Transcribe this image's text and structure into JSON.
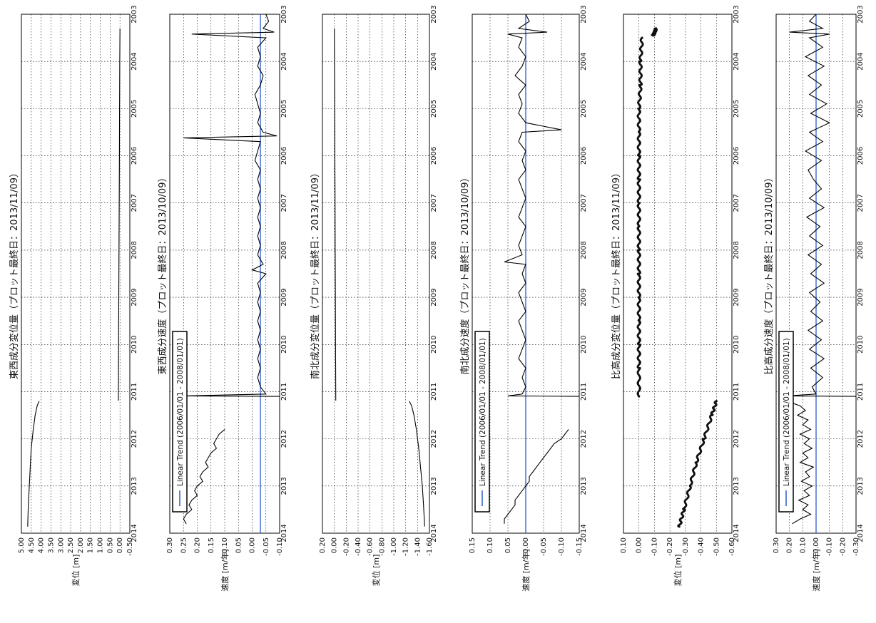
{
  "chart_data": [
    {
      "type": "line",
      "title": "東西成分変位量（プロット最終日：2013/11/09）",
      "ylabel": "変位 [m]",
      "ylim": [
        -0.5,
        5.0
      ],
      "yticks": [
        "5.00",
        "4.50",
        "4.00",
        "3.50",
        "3.00",
        "2.50",
        "2.00",
        "1.50",
        "1.00",
        "0.50",
        "0.00",
        "-0.50"
      ],
      "xticks": [
        "2003",
        "2004",
        "2005",
        "2006",
        "2007",
        "2008",
        "2009",
        "2010",
        "2011",
        "2012",
        "2013",
        "2014"
      ],
      "xlim": [
        2003,
        2014
      ],
      "series": [
        {
          "x": [
            2003.3,
            2004,
            2005,
            2006,
            2007,
            2008,
            2009,
            2010,
            2011.19
          ],
          "values": [
            0,
            0.01,
            0.02,
            0.03,
            0.04,
            0.05,
            0.06,
            0.07,
            0.08
          ],
          "style": "line"
        },
        {
          "x": [
            2011.2,
            2011.3,
            2011.5,
            2011.8,
            2012.2,
            2012.6,
            2013,
            2013.4,
            2013.86
          ],
          "values": [
            4.1,
            4.2,
            4.3,
            4.4,
            4.5,
            4.55,
            4.6,
            4.65,
            4.68
          ],
          "style": "line"
        }
      ]
    },
    {
      "type": "line",
      "title": "東西成分速度（プロット最終日：2013/10/09）",
      "ylabel": "速度 [m/年]",
      "ylim": [
        -0.1,
        0.3
      ],
      "yticks": [
        "0.30",
        "0.25",
        "0.20",
        "0.15",
        "0.10",
        "0.05",
        "0.00",
        "-0.05",
        "-0.10"
      ],
      "xticks": [
        "2003",
        "2004",
        "2005",
        "2006",
        "2007",
        "2008",
        "2009",
        "2010",
        "2011",
        "2012",
        "2013",
        "2014"
      ],
      "xlim": [
        2003,
        2014
      ],
      "legend": [
        "Linear Trend (2006/01/01 - 2008/01/01)"
      ],
      "trend": -0.03,
      "series": [
        {
          "x": [
            2003.0,
            2003.15,
            2003.3,
            2003.38,
            2003.42,
            2003.5,
            2003.7,
            2003.9,
            2004.1,
            2004.3,
            2004.5,
            2004.7,
            2004.9,
            2005.1,
            2005.3,
            2005.5,
            2005.58,
            2005.62,
            2005.7,
            2005.9,
            2006.1,
            2006.3,
            2006.5,
            2006.7,
            2006.9,
            2007.1,
            2007.3,
            2007.5,
            2007.7,
            2007.9,
            2008.1,
            2008.3,
            2008.42,
            2008.5,
            2008.7,
            2008.9,
            2009.1,
            2009.3,
            2009.5,
            2009.7,
            2009.9,
            2010.1,
            2010.3,
            2010.5,
            2010.7,
            2010.9,
            2011.05,
            2011.09,
            2011.1
          ],
          "values": [
            -0.05,
            -0.06,
            -0.04,
            -0.08,
            0.22,
            -0.05,
            -0.02,
            -0.03,
            -0.02,
            -0.04,
            -0.03,
            -0.01,
            -0.02,
            -0.03,
            -0.02,
            -0.04,
            -0.09,
            0.25,
            -0.03,
            -0.02,
            -0.01,
            -0.03,
            -0.02,
            -0.03,
            -0.02,
            -0.03,
            -0.02,
            -0.03,
            -0.02,
            -0.03,
            -0.02,
            -0.04,
            0.0,
            -0.05,
            -0.02,
            -0.03,
            -0.02,
            -0.03,
            -0.02,
            -0.03,
            -0.02,
            -0.03,
            -0.02,
            -0.03,
            -0.02,
            -0.03,
            -0.05,
            0.25,
            -0.1
          ],
          "style": "line"
        },
        {
          "x": [
            2011.8,
            2011.9,
            2012.0,
            2012.1,
            2012.2,
            2012.3,
            2012.4,
            2012.5,
            2012.6,
            2012.7,
            2012.8,
            2012.9,
            2013.0,
            2013.1,
            2013.2,
            2013.3,
            2013.4,
            2013.5,
            2013.6,
            2013.7,
            2013.8
          ],
          "values": [
            0.1,
            0.12,
            0.13,
            0.14,
            0.13,
            0.15,
            0.16,
            0.17,
            0.16,
            0.18,
            0.19,
            0.18,
            0.2,
            0.21,
            0.2,
            0.22,
            0.23,
            0.22,
            0.24,
            0.25,
            0.24
          ],
          "style": "line"
        }
      ]
    },
    {
      "type": "line",
      "title": "南北成分変位量（プロット最終日：2013/11/09）",
      "ylabel": "変位 [m]",
      "ylim": [
        -1.6,
        0.2
      ],
      "yticks": [
        "0.20",
        "0.00",
        "-0.20",
        "-0.40",
        "-0.60",
        "-0.80",
        "-1.00",
        "-1.20",
        "-1.40",
        "-1.60"
      ],
      "xticks": [
        "2003",
        "2004",
        "2005",
        "2006",
        "2007",
        "2008",
        "2009",
        "2010",
        "2011",
        "2012",
        "2013",
        "2014"
      ],
      "xlim": [
        2003,
        2014
      ],
      "series": [
        {
          "x": [
            2003.3,
            2004,
            2005,
            2006,
            2007,
            2008,
            2009,
            2010,
            2011.19
          ],
          "values": [
            0,
            -0.003,
            -0.006,
            -0.009,
            -0.012,
            -0.015,
            -0.018,
            -0.021,
            -0.024
          ],
          "style": "line"
        },
        {
          "x": [
            2011.2,
            2011.3,
            2011.5,
            2011.8,
            2012.2,
            2012.6,
            2013,
            2013.4,
            2013.86
          ],
          "values": [
            -1.26,
            -1.3,
            -1.34,
            -1.38,
            -1.42,
            -1.45,
            -1.48,
            -1.5,
            -1.52
          ],
          "style": "line"
        }
      ]
    },
    {
      "type": "line",
      "title": "南北成分速度（プロット最終日：2013/10/09）",
      "ylabel": "速度 [m/年]",
      "ylim": [
        -0.15,
        0.15
      ],
      "yticks": [
        "0.15",
        "0.10",
        "0.05",
        "0.00",
        "-0.05",
        "-0.10",
        "-0.15"
      ],
      "xticks": [
        "2003",
        "2004",
        "2005",
        "2006",
        "2007",
        "2008",
        "2009",
        "2010",
        "2011",
        "2012",
        "2013",
        "2014"
      ],
      "xlim": [
        2003,
        2014
      ],
      "legend": [
        "Linear Trend (2006/01/01 - 2008/01/01)"
      ],
      "trend": 0.0,
      "series": [
        {
          "x": [
            2003.0,
            2003.15,
            2003.3,
            2003.38,
            2003.42,
            2003.5,
            2003.7,
            2003.9,
            2004.1,
            2004.3,
            2004.5,
            2004.7,
            2004.9,
            2005.1,
            2005.3,
            2005.45,
            2005.5,
            2005.7,
            2005.9,
            2006.1,
            2006.3,
            2006.5,
            2006.7,
            2006.9,
            2007.1,
            2007.3,
            2007.5,
            2007.7,
            2007.9,
            2008.1,
            2008.25,
            2008.3,
            2008.5,
            2008.7,
            2008.9,
            2009.1,
            2009.3,
            2009.5,
            2009.7,
            2009.9,
            2010.1,
            2010.3,
            2010.5,
            2010.7,
            2010.9,
            2011.05,
            2011.09,
            2011.1
          ],
          "values": [
            0.0,
            -0.01,
            0.02,
            -0.06,
            0.05,
            0.01,
            0.02,
            0.0,
            0.01,
            0.03,
            0.0,
            0.02,
            0.01,
            0.02,
            0.0,
            -0.1,
            0.01,
            0.02,
            0.0,
            0.01,
            0.0,
            0.02,
            0.01,
            0.0,
            0.01,
            0.02,
            0.0,
            0.01,
            0.02,
            0.01,
            0.06,
            0.0,
            0.01,
            0.0,
            0.02,
            0.01,
            0.0,
            0.02,
            0.01,
            0.0,
            0.01,
            0.02,
            0.0,
            0.01,
            0.0,
            0.01,
            0.05,
            -0.15
          ],
          "style": "line"
        },
        {
          "x": [
            2011.8,
            2011.9,
            2012.0,
            2012.1,
            2012.2,
            2012.3,
            2012.4,
            2012.5,
            2012.6,
            2012.7,
            2012.8,
            2012.9,
            2013.0,
            2013.1,
            2013.2,
            2013.3,
            2013.4,
            2013.5,
            2013.6,
            2013.7,
            2013.8
          ],
          "values": [
            -0.12,
            -0.11,
            -0.1,
            -0.08,
            -0.07,
            -0.06,
            -0.05,
            -0.04,
            -0.03,
            -0.02,
            -0.01,
            -0.01,
            0.0,
            0.01,
            0.02,
            0.03,
            0.03,
            0.04,
            0.05,
            0.06,
            0.06
          ],
          "style": "line"
        }
      ]
    },
    {
      "type": "scatter",
      "title": "比高成分変位量（プロット最終日：2013/11/09）",
      "ylabel": "変位 [m]",
      "ylim": [
        -0.6,
        0.1
      ],
      "yticks": [
        "0.10",
        "0.00",
        "-0.10",
        "-0.20",
        "-0.30",
        "-0.40",
        "-0.50",
        "-0.60"
      ],
      "xticks": [
        "2003",
        "2004",
        "2005",
        "2006",
        "2007",
        "2008",
        "2009",
        "2010",
        "2011",
        "2012",
        "2013",
        "2014"
      ],
      "xlim": [
        2003,
        2014
      ],
      "series": [
        {
          "x": [
            2003.3,
            2003.4,
            2003.45
          ],
          "values": [
            -0.11,
            -0.1,
            -0.09
          ],
          "style": "dots"
        },
        {
          "x": [
            2003.5,
            2004,
            2004.5,
            2005,
            2005.5,
            2006,
            2006.5,
            2007,
            2007.5,
            2008,
            2008.5,
            2009,
            2009.5,
            2010,
            2010.5,
            2011.1
          ],
          "values": [
            -0.02,
            -0.01,
            -0.01,
            0.0,
            0.0,
            0.0,
            0.0,
            0.0,
            0.0,
            0.0,
            0.0,
            0.0,
            0.0,
            0.0,
            0.0,
            0.0
          ],
          "style": "dots"
        },
        {
          "x": [
            2011.2,
            2011.5,
            2012,
            2012.5,
            2013,
            2013.5,
            2013.86
          ],
          "values": [
            -0.5,
            -0.47,
            -0.42,
            -0.37,
            -0.33,
            -0.29,
            -0.26
          ],
          "style": "dots"
        }
      ]
    },
    {
      "type": "line",
      "title": "比高成分速度（プロット最終日：2013/10/09）",
      "ylabel": "速度 [m/年]",
      "ylim": [
        -0.3,
        0.3
      ],
      "yticks": [
        "0.30",
        "0.20",
        "0.10",
        "0.00",
        "-0.10",
        "-0.20",
        "-0.30"
      ],
      "xticks": [
        "2003",
        "2004",
        "2005",
        "2006",
        "2007",
        "2008",
        "2009",
        "2010",
        "2011",
        "2012",
        "2013",
        "2014"
      ],
      "xlim": [
        2003,
        2014
      ],
      "legend": [
        "Linear Trend (2006/01/01 - 2008/01/01)"
      ],
      "trend": 0.0,
      "series": [
        {
          "x": [
            2003.0,
            2003.15,
            2003.3,
            2003.38,
            2003.42,
            2003.5,
            2003.7,
            2003.9,
            2004.1,
            2004.3,
            2004.5,
            2004.7,
            2004.9,
            2005.1,
            2005.3,
            2005.5,
            2005.7,
            2005.9,
            2006.1,
            2006.3,
            2006.5,
            2006.7,
            2006.9,
            2007.1,
            2007.3,
            2007.5,
            2007.7,
            2007.9,
            2008.1,
            2008.3,
            2008.5,
            2008.7,
            2008.9,
            2009.1,
            2009.3,
            2009.5,
            2009.7,
            2009.9,
            2010.1,
            2010.3,
            2010.5,
            2010.7,
            2010.9,
            2011.05,
            2011.09,
            2011.1
          ],
          "values": [
            0.0,
            0.05,
            -0.05,
            0.2,
            -0.1,
            0.05,
            -0.05,
            0.08,
            -0.06,
            0.06,
            -0.04,
            0.05,
            -0.08,
            0.04,
            -0.1,
            0.05,
            -0.05,
            0.08,
            -0.04,
            0.06,
            0.02,
            -0.04,
            0.05,
            -0.06,
            0.07,
            -0.03,
            0.05,
            -0.05,
            0.06,
            -0.04,
            0.04,
            -0.06,
            0.05,
            -0.03,
            0.04,
            -0.05,
            0.06,
            -0.04,
            0.05,
            -0.06,
            0.04,
            -0.05,
            0.03,
            0.0,
            0.22,
            -0.3
          ],
          "style": "line"
        },
        {
          "x": [
            2011.2,
            2011.3,
            2011.4,
            2011.5,
            2011.6,
            2011.7,
            2011.8,
            2011.9,
            2012.0,
            2012.1,
            2012.2,
            2012.3,
            2012.4,
            2012.5,
            2012.6,
            2012.7,
            2012.8,
            2012.9,
            2013.0,
            2013.1,
            2013.2,
            2013.3,
            2013.4,
            2013.5,
            2013.6,
            2013.7,
            2013.8
          ],
          "values": [
            0.22,
            0.12,
            0.08,
            0.14,
            0.06,
            0.1,
            0.04,
            0.12,
            0.05,
            0.09,
            0.03,
            0.1,
            0.06,
            0.12,
            0.02,
            0.08,
            0.05,
            0.11,
            0.03,
            0.09,
            0.05,
            0.13,
            0.06,
            0.1,
            0.04,
            0.12,
            0.18
          ],
          "style": "line"
        }
      ]
    }
  ]
}
